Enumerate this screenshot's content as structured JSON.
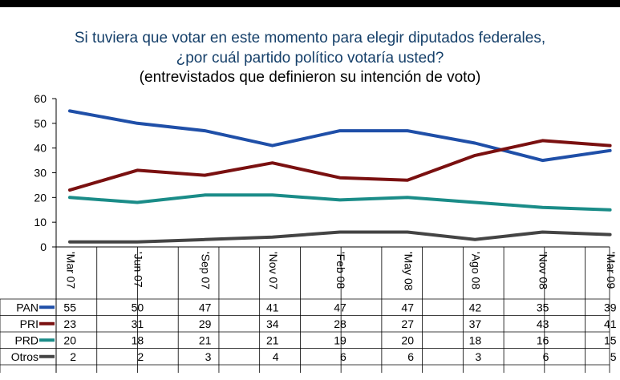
{
  "title_lines": [
    "Si tuviera que votar en este momento para elegir diputados federales,",
    "¿por cuál partido político votaría usted?",
    "(entrevistados que definieron su intención de voto)"
  ],
  "colors": {
    "PAN": "#1f4fa8",
    "PRI": "#7a1010",
    "PRD": "#1a8c88",
    "Otros": "#444444",
    "title": "#16406a",
    "topbar": "#000000"
  },
  "chart_data": {
    "type": "line",
    "title": "Si tuviera que votar en este momento para elegir diputados federales, ¿por cuál partido político votaría usted? (entrevistados que definieron su intención de voto)",
    "x": [
      "Mar 07",
      "Jun 07",
      "Sep 07",
      "Nov 07",
      "Feb 08",
      "May 08",
      "Ago 08",
      "Nov 08",
      "Mar 09"
    ],
    "x_tick_labels": [
      "'Mar 07",
      "'Jun 07",
      "'Sep 07",
      "'Nov 07",
      "'Feb 08",
      "'May 08",
      "'Ago 08",
      "'Nov 08",
      "'Mar 09"
    ],
    "y_ticks": [
      "0",
      "10",
      "20",
      "30",
      "40",
      "50",
      "60"
    ],
    "ylim": [
      0,
      60
    ],
    "grid": false,
    "legend": "in data table",
    "series": [
      {
        "name": "PAN",
        "values": [
          55,
          50,
          47,
          41,
          47,
          47,
          42,
          35,
          39
        ]
      },
      {
        "name": "PRI",
        "values": [
          23,
          31,
          29,
          34,
          28,
          27,
          37,
          43,
          41
        ]
      },
      {
        "name": "PRD",
        "values": [
          20,
          18,
          21,
          21,
          19,
          20,
          18,
          16,
          15
        ]
      },
      {
        "name": "Otros",
        "values": [
          2,
          2,
          3,
          4,
          6,
          6,
          3,
          6,
          5
        ]
      }
    ]
  }
}
